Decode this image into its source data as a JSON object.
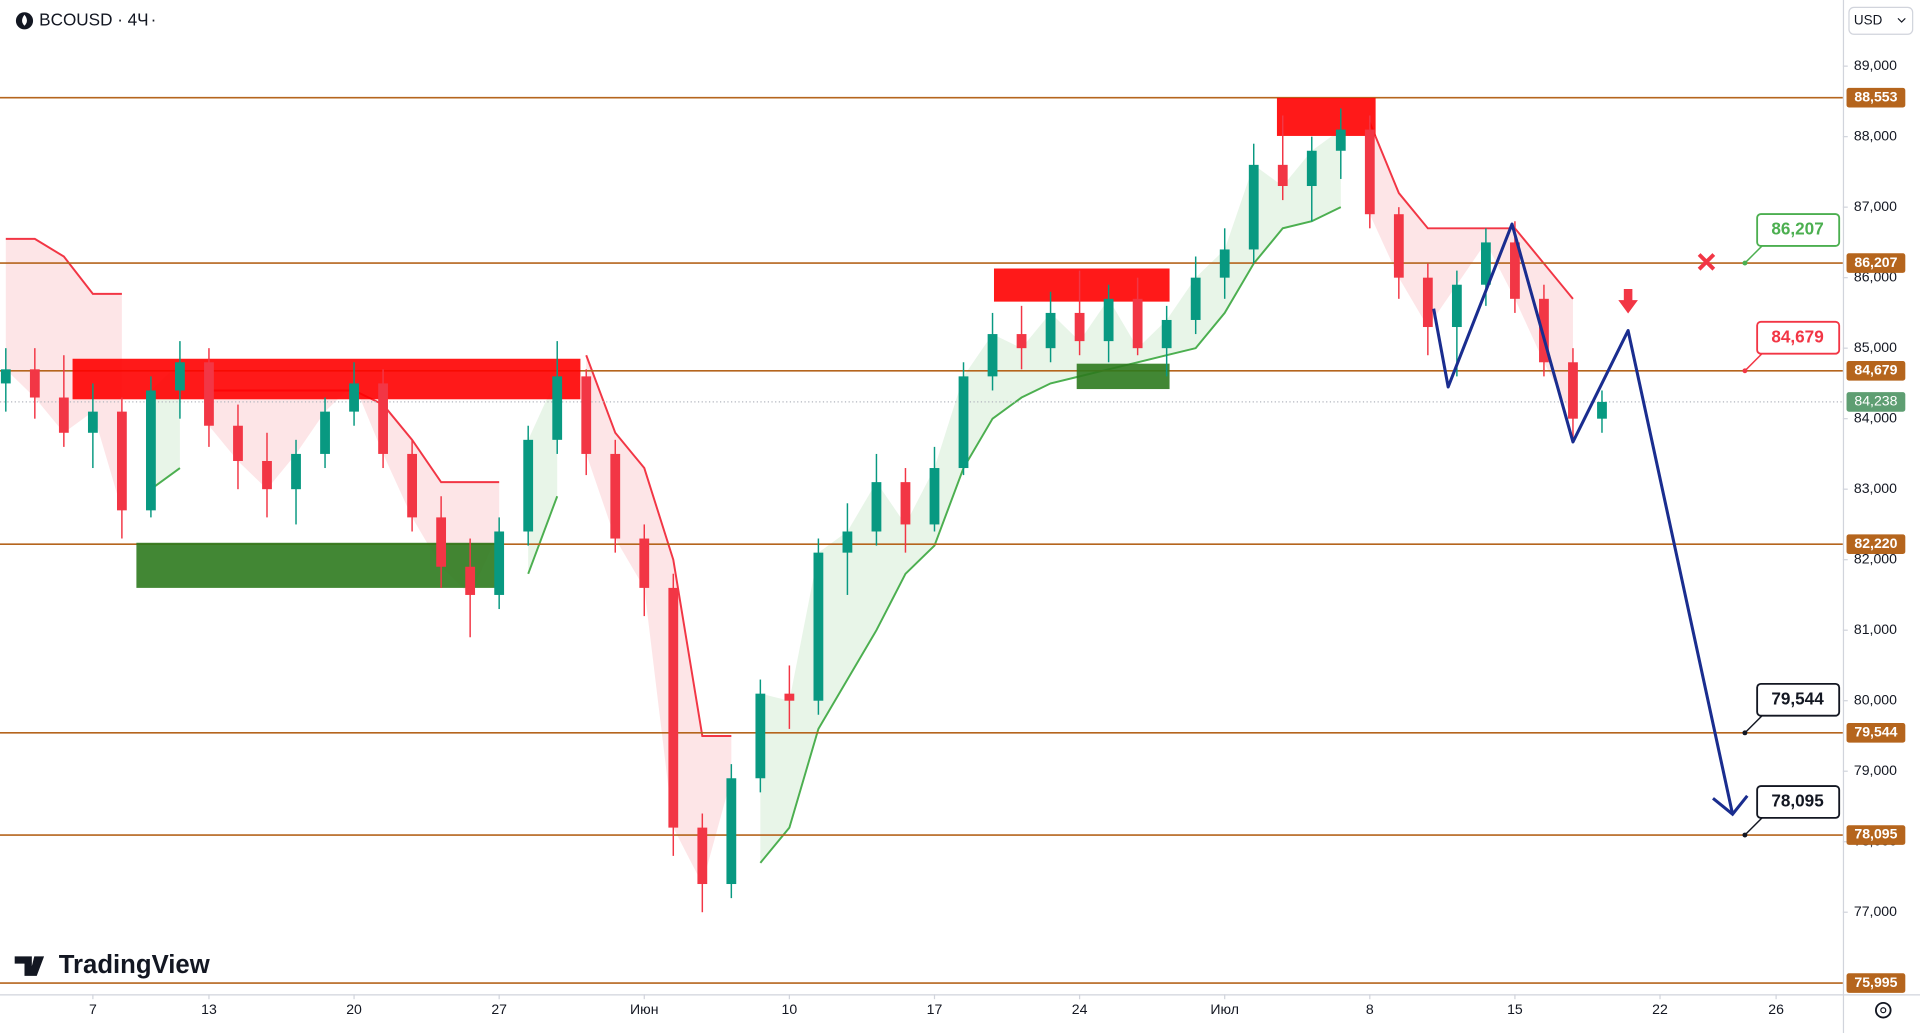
{
  "chart_data": {
    "type": "candlestick",
    "title": "BCOUSD · 4Ч",
    "currency": "USD",
    "brand": "TradingView",
    "x": [
      -3,
      -2,
      -1,
      0,
      1,
      2,
      3,
      4,
      5,
      6,
      7,
      8,
      9,
      10,
      11,
      12,
      13,
      14,
      15,
      16,
      17,
      18,
      19,
      20,
      21,
      22,
      23,
      24,
      25,
      26,
      27,
      28,
      29,
      30,
      31,
      32,
      33,
      34,
      35,
      36,
      37,
      38,
      39,
      40,
      41,
      42,
      43,
      44,
      45,
      46,
      47,
      48,
      49,
      50,
      51,
      52
    ],
    "open": [
      84500,
      84700,
      84300,
      83800,
      84100,
      82700,
      84400,
      84800,
      83900,
      83400,
      83000,
      83500,
      84100,
      84500,
      83500,
      82600,
      81900,
      81500,
      82400,
      83700,
      84600,
      83500,
      82300,
      81600,
      78200,
      77400,
      78900,
      80100,
      80000,
      82100,
      82400,
      83100,
      82500,
      83300,
      84600,
      85200,
      85000,
      85500,
      85100,
      85700,
      85000,
      85400,
      86000,
      86400,
      87600,
      87300,
      87800,
      88100,
      86900,
      86000,
      85300,
      85900,
      86500,
      85700,
      84800,
      84000
    ],
    "high": [
      85000,
      85000,
      84900,
      84500,
      84300,
      84600,
      85100,
      85000,
      84200,
      83800,
      83700,
      84300,
      84800,
      84700,
      83700,
      82900,
      82300,
      82600,
      83900,
      85100,
      84700,
      83700,
      82500,
      81800,
      78400,
      79100,
      80300,
      80500,
      82300,
      82800,
      83500,
      83300,
      83600,
      84800,
      85500,
      85600,
      85800,
      86100,
      85900,
      86000,
      85600,
      86300,
      86700,
      87900,
      88300,
      88000,
      88400,
      88300,
      87000,
      86200,
      86100,
      86700,
      86800,
      85900,
      85000,
      84400
    ],
    "low": [
      84100,
      84000,
      83600,
      83300,
      82300,
      82600,
      84000,
      83600,
      83000,
      82600,
      82500,
      83300,
      83900,
      83300,
      82400,
      81600,
      80900,
      81300,
      82200,
      83500,
      83200,
      82100,
      81200,
      77800,
      77000,
      77200,
      78700,
      79600,
      79800,
      81500,
      82200,
      82100,
      82400,
      83200,
      84400,
      84700,
      84800,
      84900,
      84800,
      84900,
      84600,
      85200,
      85700,
      86200,
      87100,
      86800,
      87400,
      86700,
      85700,
      84900,
      84600,
      85600,
      85500,
      84600,
      83700,
      83800
    ],
    "close": [
      84700,
      84300,
      83800,
      84100,
      82700,
      84400,
      84800,
      83900,
      83400,
      83000,
      83500,
      84100,
      84500,
      83500,
      82600,
      81900,
      81500,
      82400,
      83700,
      84600,
      83500,
      82300,
      81600,
      78200,
      77400,
      78900,
      80100,
      80000,
      82100,
      82400,
      83100,
      82500,
      83300,
      84600,
      85200,
      85000,
      85500,
      85100,
      85700,
      85000,
      85400,
      86000,
      86400,
      87600,
      87300,
      87800,
      88100,
      86900,
      86000,
      85300,
      85900,
      86500,
      85700,
      84800,
      84000,
      84238
    ],
    "up_color": "#089981",
    "down_color": "#f23645",
    "trend_lines": [
      {
        "color": "#f23645",
        "fill": "rgba(242,54,69,0.13)",
        "values": [
          86550,
          86550,
          86300,
          85770,
          85770,
          null,
          null,
          84400,
          84400,
          84400,
          84400,
          84400,
          84400,
          84200,
          83700,
          83100,
          83100,
          83100,
          null,
          null,
          84900,
          83800,
          83300,
          82000,
          79500,
          79500,
          null,
          null,
          null,
          null,
          null,
          null,
          null,
          null,
          null,
          null,
          null,
          null,
          null,
          null,
          null,
          null,
          null,
          null,
          null,
          null,
          null,
          88200,
          87200,
          86700,
          86700,
          86700,
          86700,
          86200,
          85700,
          null
        ]
      },
      {
        "color": "#4caf50",
        "fill": "rgba(76,175,80,0.13)",
        "values": [
          null,
          null,
          null,
          null,
          null,
          83000,
          83300,
          null,
          null,
          null,
          null,
          null,
          null,
          null,
          null,
          null,
          null,
          null,
          81800,
          82900,
          null,
          null,
          null,
          null,
          null,
          null,
          77700,
          78200,
          79600,
          80300,
          81000,
          81800,
          82200,
          83300,
          84000,
          84300,
          84500,
          84600,
          84700,
          84800,
          84900,
          85000,
          85500,
          86200,
          86700,
          86800,
          87000,
          null,
          null,
          null,
          null,
          null,
          null,
          null,
          null,
          null
        ]
      }
    ],
    "zones": [
      {
        "x": [
          -0.7,
          16.8
        ],
        "y": [
          84275,
          84850
        ],
        "color": "#ff0000"
      },
      {
        "x": [
          1.5,
          14.1
        ],
        "y": [
          81600,
          82240
        ],
        "color": "#2e7a1e"
      },
      {
        "x": [
          31.05,
          37.1
        ],
        "y": [
          85660,
          86130
        ],
        "color": "#ff0000"
      },
      {
        "x": [
          33.9,
          37.1
        ],
        "y": [
          84420,
          84780
        ],
        "color": "#2e7a1e"
      },
      {
        "x": [
          40.8,
          44.2
        ],
        "y": [
          88010,
          88550
        ],
        "color": "#ff0000"
      }
    ],
    "projection": {
      "color": "#1a2d8f",
      "x": [
        46.2,
        46.7,
        48.9,
        51.0,
        52.9,
        56.5
      ],
      "y": [
        85560,
        84450,
        86760,
        83670,
        85250,
        78390
      ]
    },
    "sell_arrow": {
      "x": 52.9,
      "y": 85630,
      "color": "#f23645"
    },
    "stop_mark": {
      "x": 55.6,
      "y": 86207,
      "color": "#f23645"
    },
    "levels": [
      {
        "value": 88553,
        "label": "88,553"
      },
      {
        "value": 86207,
        "label": "86,207"
      },
      {
        "value": 84679,
        "label": "84,679"
      },
      {
        "value": 82220,
        "label": "82,220"
      },
      {
        "value": 79544,
        "label": "79,544"
      },
      {
        "value": 78095,
        "label": "78,095"
      },
      {
        "value": 75995,
        "label": "75,995"
      }
    ],
    "level_color": "#b5651d",
    "last_price": {
      "value": 84238,
      "label": "84,238",
      "color": "#5e9e72"
    },
    "callouts": [
      {
        "value": 86207,
        "label": "86,207",
        "color": "#4caf50"
      },
      {
        "value": 84679,
        "label": "84,679",
        "color": "#f23645"
      },
      {
        "value": 79544,
        "label": "79,544",
        "color": "#131722"
      },
      {
        "value": 78095,
        "label": "78,095",
        "color": "#131722"
      }
    ],
    "xlim": [
      -3.2,
      60.3
    ],
    "ylim": [
      75836,
      89938
    ],
    "xticks": [
      {
        "value": 0,
        "label": "7"
      },
      {
        "value": 4,
        "label": "13"
      },
      {
        "value": 9,
        "label": "20"
      },
      {
        "value": 14,
        "label": "27"
      },
      {
        "value": 19,
        "label": "Июн"
      },
      {
        "value": 24,
        "label": "10"
      },
      {
        "value": 29,
        "label": "17"
      },
      {
        "value": 34,
        "label": "24"
      },
      {
        "value": 39,
        "label": "Июл"
      },
      {
        "value": 44,
        "label": "8"
      },
      {
        "value": 49,
        "label": "15"
      },
      {
        "value": 54,
        "label": "22"
      },
      {
        "value": 58,
        "label": "26"
      }
    ],
    "yticks": [
      {
        "value": 77000,
        "label": "77,000"
      },
      {
        "value": 78000,
        "label": "78,000"
      },
      {
        "value": 79000,
        "label": "79,000"
      },
      {
        "value": 80000,
        "label": "80,000"
      },
      {
        "value": 81000,
        "label": "81,000"
      },
      {
        "value": 82000,
        "label": "82,000"
      },
      {
        "value": 83000,
        "label": "83,000"
      },
      {
        "value": 84000,
        "label": "84,000"
      },
      {
        "value": 85000,
        "label": "85,000"
      },
      {
        "value": 86000,
        "label": "86,000"
      },
      {
        "value": 87000,
        "label": "87,000"
      },
      {
        "value": 88000,
        "label": "88,000"
      },
      {
        "value": 89000,
        "label": "89,000"
      }
    ]
  }
}
